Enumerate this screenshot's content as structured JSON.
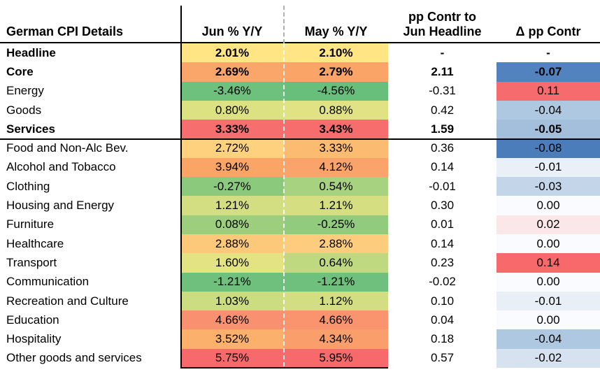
{
  "header": {
    "row_label_header": "German CPI Details",
    "col_jun": "Jun % Y/Y",
    "col_may": "May % Y/Y",
    "col_pp_line1": "pp Contr to",
    "col_pp_line2": "Jun Headline",
    "col_delta": "Δ pp Contr"
  },
  "rows": [
    {
      "label": "Headline",
      "bold": true,
      "jun": "2.01%",
      "may": "2.10%",
      "pp": "-",
      "dpp": "-",
      "junBg": "#FFE584",
      "mayBg": "#FFE584",
      "dppBg": ""
    },
    {
      "label": "Core",
      "bold": true,
      "jun": "2.69%",
      "may": "2.79%",
      "pp": "2.11",
      "dpp": "-0.07",
      "junBg": "#FAA569",
      "mayBg": "#FAA467",
      "dppBg": "#5383BE"
    },
    {
      "label": "Energy",
      "bold": false,
      "jun": "-3.46%",
      "may": "-4.56%",
      "pp": "-0.31",
      "dpp": "0.11",
      "junBg": "#6EC07D",
      "mayBg": "#68BF7B",
      "dppBg": "#F66B6E"
    },
    {
      "label": "Goods",
      "bold": false,
      "jun": "0.80%",
      "may": "0.88%",
      "pp": "0.42",
      "dpp": "-0.04",
      "junBg": "#DCE182",
      "mayBg": "#E0E283",
      "dppBg": "#AFC8E1"
    },
    {
      "label": "Services",
      "bold": true,
      "jun": "3.33%",
      "may": "3.43%",
      "pp": "1.59",
      "dpp": "-0.05",
      "junBg": "#F76E6E",
      "mayBg": "#F76D6D",
      "dppBg": "#A3BFDC"
    },
    {
      "label": "Food and Non-Alc Bev.",
      "bold": false,
      "jun": "2.72%",
      "may": "3.33%",
      "pp": "0.36",
      "dpp": "-0.08",
      "junBg": "#FDD17E",
      "mayBg": "#FBBC71",
      "dppBg": "#4B7DBB"
    },
    {
      "label": "Alcohol and Tobacco",
      "bold": false,
      "jun": "3.94%",
      "may": "4.12%",
      "pp": "0.14",
      "dpp": "-0.01",
      "junBg": "#FAA466",
      "mayBg": "#FAA46B",
      "dppBg": "#EAF0F8"
    },
    {
      "label": "Clothing",
      "bold": false,
      "jun": "-0.27%",
      "may": "0.54%",
      "pp": "-0.01",
      "dpp": "-0.03",
      "junBg": "#8BCA7D",
      "mayBg": "#A7D27F",
      "dppBg": "#C2D5E9"
    },
    {
      "label": "Housing and Energy",
      "bold": false,
      "jun": "1.21%",
      "may": "1.21%",
      "pp": "0.30",
      "dpp": "0.00",
      "junBg": "#D2DE81",
      "mayBg": "#D5DF82",
      "dppBg": "#FAFBFE"
    },
    {
      "label": "Furniture",
      "bold": false,
      "jun": "0.08%",
      "may": "-0.25%",
      "pp": "0.01",
      "dpp": "0.02",
      "junBg": "#9CCE7E",
      "mayBg": "#90CB7E",
      "dppBg": "#FBE7E8"
    },
    {
      "label": "Healthcare",
      "bold": false,
      "jun": "2.88%",
      "may": "2.88%",
      "pp": "0.14",
      "dpp": "0.00",
      "junBg": "#FCC97B",
      "mayBg": "#FDCD7D",
      "dppBg": "#FAFBFE"
    },
    {
      "label": "Transport",
      "bold": false,
      "jun": "1.60%",
      "may": "0.64%",
      "pp": "0.23",
      "dpp": "0.14",
      "junBg": "#E4E383",
      "mayBg": "#BED980",
      "dppBg": "#F8696B"
    },
    {
      "label": "Communication",
      "bold": false,
      "jun": "-1.21%",
      "may": "-1.21%",
      "pp": "-0.02",
      "dpp": "0.00",
      "junBg": "#6FC07C",
      "mayBg": "#6FC07C",
      "dppBg": "#FAFBFE"
    },
    {
      "label": "Recreation and Culture",
      "bold": false,
      "jun": "1.03%",
      "may": "1.12%",
      "pp": "0.10",
      "dpp": "-0.01",
      "junBg": "#CBDC81",
      "mayBg": "#D2DE81",
      "dppBg": "#E9EFF7"
    },
    {
      "label": "Education",
      "bold": false,
      "jun": "4.66%",
      "may": "4.66%",
      "pp": "0.04",
      "dpp": "0.00",
      "junBg": "#F9906F",
      "mayBg": "#F9946F",
      "dppBg": "#FAFBFE"
    },
    {
      "label": "Hospitality",
      "bold": false,
      "jun": "3.52%",
      "may": "4.34%",
      "pp": "0.18",
      "dpp": "-0.04",
      "junBg": "#FBB06C",
      "mayBg": "#FA9E6B",
      "dppBg": "#AFC8E1"
    },
    {
      "label": "Other goods and services",
      "bold": false,
      "jun": "5.75%",
      "may": "5.95%",
      "pp": "0.57",
      "dpp": "-0.02",
      "junBg": "#F8696B",
      "mayBg": "#F8696B",
      "dppBg": "#D6E2F0"
    }
  ],
  "colors": {
    "border_black": "#000000",
    "dashed_gray": "#b0b0b0",
    "yoy_scale_low_green": "#63BE7B",
    "yoy_scale_mid_yellow": "#FFEB84",
    "yoy_scale_high_red": "#F8696B",
    "delta_scale_low_blue": "#4B7DBB",
    "delta_scale_mid_white": "#FCFCFF",
    "delta_scale_high_red": "#F8696B"
  },
  "chart_data": {
    "type": "heatmap",
    "title": "German CPI Details",
    "columns": [
      "Jun % Y/Y",
      "May % Y/Y",
      "pp Contr to Jun Headline",
      "Δ pp Contr"
    ],
    "rows": [
      {
        "category": "Headline",
        "jun_yoy_pct": 2.01,
        "may_yoy_pct": 2.1,
        "pp_contr_jun": null,
        "delta_pp_contr": null
      },
      {
        "category": "Core",
        "jun_yoy_pct": 2.69,
        "may_yoy_pct": 2.79,
        "pp_contr_jun": 2.11,
        "delta_pp_contr": -0.07
      },
      {
        "category": "Energy",
        "jun_yoy_pct": -3.46,
        "may_yoy_pct": -4.56,
        "pp_contr_jun": -0.31,
        "delta_pp_contr": 0.11
      },
      {
        "category": "Goods",
        "jun_yoy_pct": 0.8,
        "may_yoy_pct": 0.88,
        "pp_contr_jun": 0.42,
        "delta_pp_contr": -0.04
      },
      {
        "category": "Services",
        "jun_yoy_pct": 3.33,
        "may_yoy_pct": 3.43,
        "pp_contr_jun": 1.59,
        "delta_pp_contr": -0.05
      },
      {
        "category": "Food and Non-Alc Bev.",
        "jun_yoy_pct": 2.72,
        "may_yoy_pct": 3.33,
        "pp_contr_jun": 0.36,
        "delta_pp_contr": -0.08
      },
      {
        "category": "Alcohol and Tobacco",
        "jun_yoy_pct": 3.94,
        "may_yoy_pct": 4.12,
        "pp_contr_jun": 0.14,
        "delta_pp_contr": -0.01
      },
      {
        "category": "Clothing",
        "jun_yoy_pct": -0.27,
        "may_yoy_pct": 0.54,
        "pp_contr_jun": -0.01,
        "delta_pp_contr": -0.03
      },
      {
        "category": "Housing and Energy",
        "jun_yoy_pct": 1.21,
        "may_yoy_pct": 1.21,
        "pp_contr_jun": 0.3,
        "delta_pp_contr": 0.0
      },
      {
        "category": "Furniture",
        "jun_yoy_pct": 0.08,
        "may_yoy_pct": -0.25,
        "pp_contr_jun": 0.01,
        "delta_pp_contr": 0.02
      },
      {
        "category": "Healthcare",
        "jun_yoy_pct": 2.88,
        "may_yoy_pct": 2.88,
        "pp_contr_jun": 0.14,
        "delta_pp_contr": 0.0
      },
      {
        "category": "Transport",
        "jun_yoy_pct": 1.6,
        "may_yoy_pct": 0.64,
        "pp_contr_jun": 0.23,
        "delta_pp_contr": 0.14
      },
      {
        "category": "Communication",
        "jun_yoy_pct": -1.21,
        "may_yoy_pct": -1.21,
        "pp_contr_jun": -0.02,
        "delta_pp_contr": 0.0
      },
      {
        "category": "Recreation and Culture",
        "jun_yoy_pct": 1.03,
        "may_yoy_pct": 1.12,
        "pp_contr_jun": 0.1,
        "delta_pp_contr": -0.01
      },
      {
        "category": "Education",
        "jun_yoy_pct": 4.66,
        "may_yoy_pct": 4.66,
        "pp_contr_jun": 0.04,
        "delta_pp_contr": 0.0
      },
      {
        "category": "Hospitality",
        "jun_yoy_pct": 3.52,
        "may_yoy_pct": 4.34,
        "pp_contr_jun": 0.18,
        "delta_pp_contr": -0.04
      },
      {
        "category": "Other goods and services",
        "jun_yoy_pct": 5.75,
        "may_yoy_pct": 5.95,
        "pp_contr_jun": 0.57,
        "delta_pp_contr": -0.02
      }
    ],
    "legend": "none",
    "color_scales": {
      "yoy_columns": {
        "low": "#63BE7B",
        "mid": "#FFEB84",
        "high": "#F8696B"
      },
      "delta_column": {
        "low": "#4B7DBB",
        "mid": "#FCFCFF",
        "high": "#F8696B"
      }
    }
  }
}
